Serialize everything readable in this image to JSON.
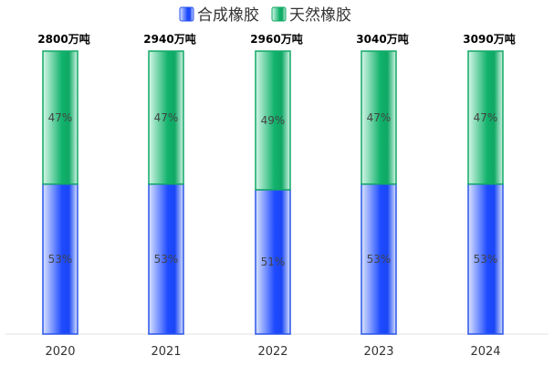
{
  "chart_data": {
    "type": "bar",
    "stacked": true,
    "categories": [
      "2020",
      "2021",
      "2022",
      "2023",
      "2024"
    ],
    "series": [
      {
        "name": "合成橡胶",
        "values": [
          53,
          53,
          51,
          53,
          53
        ],
        "labels": [
          "53%",
          "53%",
          "51%",
          "53%",
          "53%"
        ],
        "color": "#1a4cff"
      },
      {
        "name": "天然橡胶",
        "values": [
          47,
          47,
          49,
          47,
          47
        ],
        "labels": [
          "47%",
          "47%",
          "49%",
          "47%",
          "47%"
        ],
        "color": "#0eb56d"
      }
    ],
    "totals": [
      "2800万吨",
      "2940万吨",
      "2960万吨",
      "3040万吨",
      "3090万吨"
    ],
    "ylim": [
      0,
      100
    ],
    "grid": false,
    "legend": "top-center",
    "xlabel": "",
    "ylabel": ""
  }
}
